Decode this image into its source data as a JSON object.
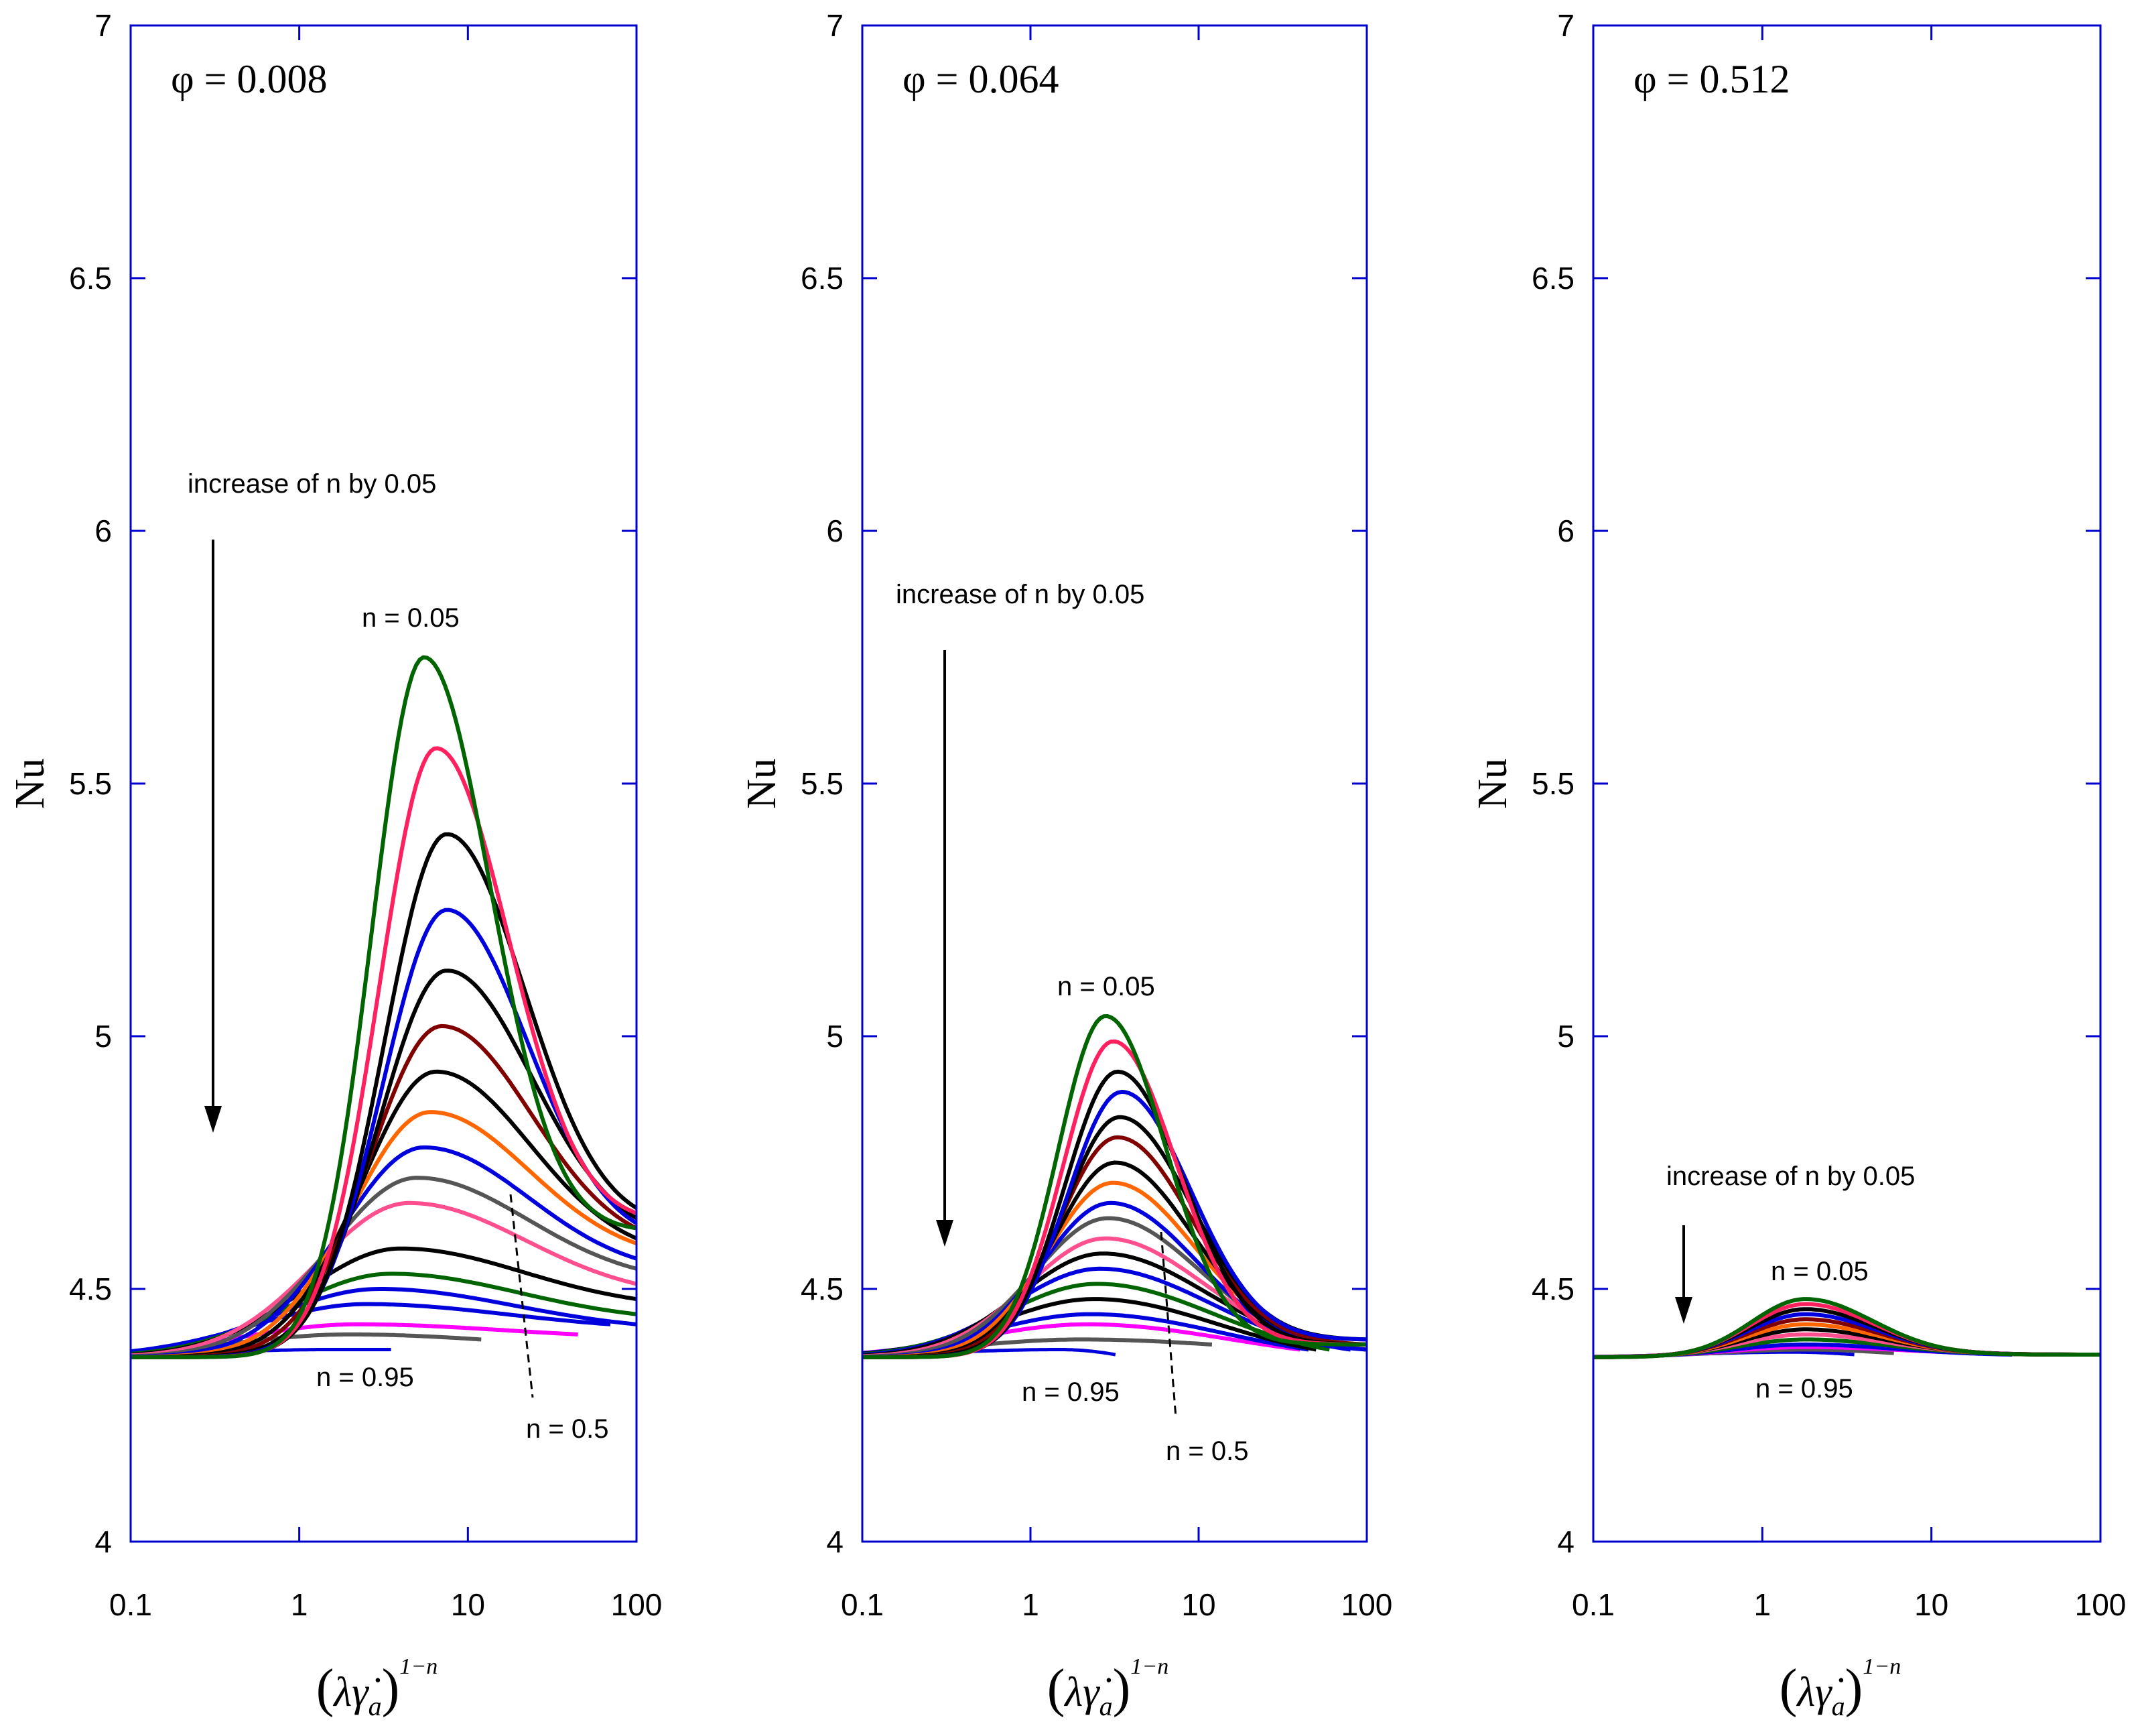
{
  "chart_data": [
    {
      "type": "line",
      "title": "φ = 0.008",
      "xlabel_parts": [
        "(",
        "λ",
        "γ̇",
        "a",
        ")",
        "1−n"
      ],
      "ylabel": "Nu",
      "x_scale": "log",
      "xlim": [
        0.1,
        100
      ],
      "ylim": [
        4,
        7
      ],
      "x_tick_labels": [
        "0.1",
        "1",
        "10",
        "100"
      ],
      "y_tick_labels": [
        "4",
        "4.5",
        "5",
        "5.5",
        "6",
        "6.5",
        "7"
      ],
      "annotations": {
        "increase": "increase of n by 0.05",
        "n_top": "n = 0.05",
        "n_bottom": "n = 0.95",
        "n_mid": "n = 0.5"
      },
      "series": [
        {
          "color": "#006400",
          "peak_x": 5.5,
          "peak_y": 5.75,
          "width": 0.44,
          "x_end": 100,
          "end_y": 4.62
        },
        {
          "color": "#ff2060",
          "peak_x": 6.5,
          "peak_y": 5.57,
          "width": 0.48,
          "x_end": 100,
          "end_y": 4.65
        },
        {
          "color": "#000000",
          "peak_x": 7.5,
          "peak_y": 5.4,
          "width": 0.52,
          "x_end": 100,
          "end_y": 4.66
        },
        {
          "color": "#0000dd",
          "peak_x": 7.5,
          "peak_y": 5.25,
          "width": 0.54,
          "x_end": 100,
          "end_y": 4.63
        },
        {
          "color": "#000000",
          "peak_x": 7.5,
          "peak_y": 5.13,
          "width": 0.57,
          "x_end": 100,
          "end_y": 4.64
        },
        {
          "color": "#800000",
          "peak_x": 7.0,
          "peak_y": 5.02,
          "width": 0.6,
          "x_end": 100,
          "end_y": 4.62
        },
        {
          "color": "#000000",
          "peak_x": 6.5,
          "peak_y": 4.93,
          "width": 0.63,
          "x_end": 100,
          "end_y": 4.6
        },
        {
          "color": "#ff6600",
          "peak_x": 6.0,
          "peak_y": 4.85,
          "width": 0.66,
          "x_end": 100,
          "end_y": 4.59
        },
        {
          "color": "#0000dd",
          "peak_x": 5.5,
          "peak_y": 4.78,
          "width": 0.7,
          "x_end": 100,
          "end_y": 4.56
        },
        {
          "color": "#555555",
          "peak_x": 5.0,
          "peak_y": 4.72,
          "width": 0.74,
          "x_end": 100,
          "end_y": 4.54
        },
        {
          "color": "#ff4f8f",
          "peak_x": 4.5,
          "peak_y": 4.67,
          "width": 0.78,
          "x_end": 100,
          "end_y": 4.51
        },
        {
          "color": "#000000",
          "peak_x": 4.0,
          "peak_y": 4.58,
          "width": 0.82,
          "x_end": 100,
          "end_y": 4.48
        },
        {
          "color": "#006400",
          "peak_x": 3.5,
          "peak_y": 4.53,
          "width": 0.86,
          "x_end": 100,
          "end_y": 4.45
        },
        {
          "color": "#0000dd",
          "peak_x": 3.0,
          "peak_y": 4.5,
          "width": 0.9,
          "x_end": 100,
          "end_y": 4.43
        },
        {
          "color": "#0000dd",
          "peak_x": 2.5,
          "peak_y": 4.47,
          "width": 0.94,
          "x_end": 70,
          "end_y": 4.43
        },
        {
          "color": "#ff00ff",
          "peak_x": 2.2,
          "peak_y": 4.43,
          "width": 0.98,
          "x_end": 45,
          "end_y": 4.41
        },
        {
          "color": "#555555",
          "peak_x": 2.0,
          "peak_y": 4.41,
          "width": 1.0,
          "x_end": 12,
          "end_y": 4.4
        },
        {
          "color": "#0000dd",
          "peak_x": 1.5,
          "peak_y": 4.38,
          "width": 1.0,
          "x_end": 3.5,
          "end_y": 4.38
        }
      ]
    },
    {
      "type": "line",
      "title": "φ = 0.064",
      "xlabel_parts": [
        "(",
        "λ",
        "γ̇",
        "a",
        ")",
        "1−n"
      ],
      "ylabel": "Nu",
      "x_scale": "log",
      "xlim": [
        0.1,
        100
      ],
      "ylim": [
        4,
        7
      ],
      "x_tick_labels": [
        "0.1",
        "1",
        "10",
        "100"
      ],
      "y_tick_labels": [
        "4",
        "4.5",
        "5",
        "5.5",
        "6",
        "6.5",
        "7"
      ],
      "annotations": {
        "increase": "increase of n by 0.05",
        "n_top": "n = 0.05",
        "n_bottom": "n = 0.95",
        "n_mid": "n = 0.5"
      },
      "series": [
        {
          "color": "#006400",
          "peak_x": 2.8,
          "peak_y": 5.04,
          "width": 0.4,
          "x_end": 100,
          "end_y": 4.39
        },
        {
          "color": "#ff2060",
          "peak_x": 3.1,
          "peak_y": 4.99,
          "width": 0.42,
          "x_end": 100,
          "end_y": 4.39
        },
        {
          "color": "#000000",
          "peak_x": 3.3,
          "peak_y": 4.93,
          "width": 0.44,
          "x_end": 100,
          "end_y": 4.39
        },
        {
          "color": "#0000dd",
          "peak_x": 3.5,
          "peak_y": 4.89,
          "width": 0.46,
          "x_end": 100,
          "end_y": 4.4
        },
        {
          "color": "#000000",
          "peak_x": 3.4,
          "peak_y": 4.84,
          "width": 0.48,
          "x_end": 100,
          "end_y": 4.4
        },
        {
          "color": "#800000",
          "peak_x": 3.3,
          "peak_y": 4.8,
          "width": 0.5,
          "x_end": 100,
          "end_y": 4.39
        },
        {
          "color": "#000000",
          "peak_x": 3.2,
          "peak_y": 4.75,
          "width": 0.52,
          "x_end": 100,
          "end_y": 4.39
        },
        {
          "color": "#ff6600",
          "peak_x": 3.1,
          "peak_y": 4.71,
          "width": 0.55,
          "x_end": 100,
          "end_y": 4.39
        },
        {
          "color": "#0000dd",
          "peak_x": 3.0,
          "peak_y": 4.67,
          "width": 0.58,
          "x_end": 100,
          "end_y": 4.38
        },
        {
          "color": "#555555",
          "peak_x": 2.9,
          "peak_y": 4.64,
          "width": 0.62,
          "x_end": 100,
          "end_y": 4.38
        },
        {
          "color": "#ff4f8f",
          "peak_x": 2.8,
          "peak_y": 4.6,
          "width": 0.66,
          "x_end": 100,
          "end_y": 4.38
        },
        {
          "color": "#000000",
          "peak_x": 2.7,
          "peak_y": 4.57,
          "width": 0.7,
          "x_end": 100,
          "end_y": 4.38
        },
        {
          "color": "#0000dd",
          "peak_x": 2.6,
          "peak_y": 4.54,
          "width": 0.74,
          "x_end": 80,
          "end_y": 4.38
        },
        {
          "color": "#006400",
          "peak_x": 2.5,
          "peak_y": 4.51,
          "width": 0.78,
          "x_end": 60,
          "end_y": 4.38
        },
        {
          "color": "#000000",
          "peak_x": 2.4,
          "peak_y": 4.48,
          "width": 0.82,
          "x_end": 50,
          "end_y": 4.38
        },
        {
          "color": "#0000dd",
          "peak_x": 2.3,
          "peak_y": 4.45,
          "width": 0.88,
          "x_end": 45,
          "end_y": 4.38
        },
        {
          "color": "#ff00ff",
          "peak_x": 2.2,
          "peak_y": 4.43,
          "width": 0.94,
          "x_end": 40,
          "end_y": 4.38
        },
        {
          "color": "#555555",
          "peak_x": 2.0,
          "peak_y": 4.4,
          "width": 1.0,
          "x_end": 12,
          "end_y": 4.39
        },
        {
          "color": "#0000dd",
          "peak_x": 1.5,
          "peak_y": 4.38,
          "width": 1.0,
          "x_end": 3.2,
          "end_y": 4.37
        }
      ]
    },
    {
      "type": "line",
      "title": "φ = 0.512",
      "xlabel_parts": [
        "(",
        "λ",
        "γ̇",
        "a",
        ")",
        "1−n"
      ],
      "ylabel": "Nu",
      "x_scale": "log",
      "xlim": [
        0.1,
        100
      ],
      "ylim": [
        4,
        7
      ],
      "x_tick_labels": [
        "0.1",
        "1",
        "10",
        "100"
      ],
      "y_tick_labels": [
        "4",
        "4.5",
        "5",
        "5.5",
        "6",
        "6.5",
        "7"
      ],
      "annotations": {
        "increase": "increase of n by 0.05",
        "n_top": "n = 0.05",
        "n_bottom": "n = 0.95"
      },
      "series": [
        {
          "color": "#006400",
          "peak_x": 1.8,
          "peak_y": 4.48,
          "width": 0.45,
          "x_end": 100,
          "end_y": 4.37
        },
        {
          "color": "#ff2060",
          "peak_x": 1.8,
          "peak_y": 4.47,
          "width": 0.46,
          "x_end": 100,
          "end_y": 4.37
        },
        {
          "color": "#000000",
          "peak_x": 1.8,
          "peak_y": 4.46,
          "width": 0.47,
          "x_end": 100,
          "end_y": 4.37
        },
        {
          "color": "#0000dd",
          "peak_x": 1.8,
          "peak_y": 4.45,
          "width": 0.48,
          "x_end": 100,
          "end_y": 4.37
        },
        {
          "color": "#800000",
          "peak_x": 1.8,
          "peak_y": 4.44,
          "width": 0.49,
          "x_end": 100,
          "end_y": 4.37
        },
        {
          "color": "#ff6600",
          "peak_x": 1.8,
          "peak_y": 4.43,
          "width": 0.5,
          "x_end": 100,
          "end_y": 4.37
        },
        {
          "color": "#000000",
          "peak_x": 1.8,
          "peak_y": 4.42,
          "width": 0.52,
          "x_end": 100,
          "end_y": 4.37
        },
        {
          "color": "#ff4f8f",
          "peak_x": 1.8,
          "peak_y": 4.41,
          "width": 0.54,
          "x_end": 100,
          "end_y": 4.37
        },
        {
          "color": "#006400",
          "peak_x": 1.8,
          "peak_y": 4.4,
          "width": 0.56,
          "x_end": 100,
          "end_y": 4.37
        },
        {
          "color": "#0000dd",
          "peak_x": 1.8,
          "peak_y": 4.39,
          "width": 0.6,
          "x_end": 30,
          "end_y": 4.37
        },
        {
          "color": "#ff00ff",
          "peak_x": 1.8,
          "peak_y": 4.385,
          "width": 0.64,
          "x_end": 12,
          "end_y": 4.375
        },
        {
          "color": "#555555",
          "peak_x": 1.8,
          "peak_y": 4.38,
          "width": 0.7,
          "x_end": 6,
          "end_y": 4.373
        },
        {
          "color": "#0000dd",
          "peak_x": 1.5,
          "peak_y": 4.375,
          "width": 0.8,
          "x_end": 3.5,
          "end_y": 4.37
        }
      ]
    }
  ]
}
